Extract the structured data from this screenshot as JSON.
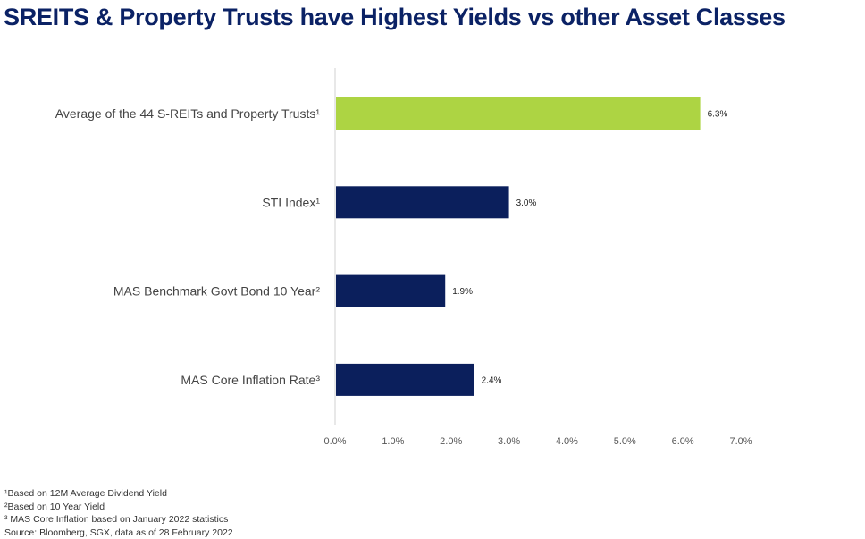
{
  "title": "SREITS & Property Trusts have Highest Yields vs other Asset Classes",
  "chart_data": {
    "type": "bar",
    "orientation": "horizontal",
    "categories": [
      "Average of the 44 S-REITs and Property Trusts¹",
      "STI Index¹",
      "MAS Benchmark Govt Bond 10 Year²",
      "MAS Core Inflation Rate³"
    ],
    "values": [
      6.3,
      3.0,
      1.9,
      2.4
    ],
    "data_labels": [
      "6.3%",
      "3.0%",
      "1.9%",
      "2.4%"
    ],
    "bar_colors": [
      "#add443",
      "#0b1f5c",
      "#0b1f5c",
      "#0b1f5c"
    ],
    "xlim": [
      0,
      7
    ],
    "x_ticks": [
      0,
      1,
      2,
      3,
      4,
      5,
      6,
      7
    ],
    "x_tick_labels": [
      "0.0%",
      "1.0%",
      "2.0%",
      "3.0%",
      "4.0%",
      "5.0%",
      "6.0%",
      "7.0%"
    ],
    "xlabel": "",
    "ylabel": "",
    "grid": false,
    "legend": "none"
  },
  "footnotes": [
    "¹Based on 12M Average Dividend Yield",
    "²Based on 10 Year Yield",
    "³ MAS Core Inflation based on January 2022 statistics",
    "Source: Bloomberg, SGX, data as of 28 February 2022"
  ]
}
